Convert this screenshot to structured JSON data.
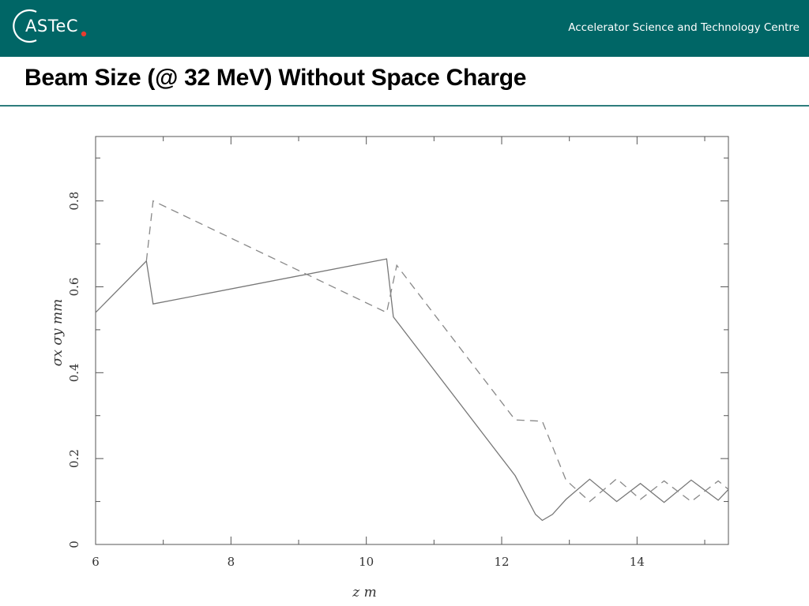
{
  "header": {
    "logo_text": "ASTeC",
    "org_name": "Accelerator Science and Technology Centre",
    "logo_dot_color": "#e63c2f",
    "background": "#006666"
  },
  "title": "Beam Size (@ 32 MeV) Without Space Charge",
  "chart_data": {
    "type": "line",
    "xlabel": "z  m",
    "ylabel": "σx  σy  mm",
    "xlim": [
      6,
      15.35
    ],
    "ylim": [
      0,
      0.95
    ],
    "xticks": [
      6,
      8,
      10,
      12,
      14
    ],
    "yticks": [
      0,
      0.2,
      0.4,
      0.6,
      0.8
    ],
    "grid": false,
    "series": [
      {
        "style": "solid",
        "x": [
          6.0,
          6.75,
          6.85,
          10.3,
          10.4,
          12.2,
          12.5,
          12.6,
          12.75,
          12.95,
          13.3,
          13.7,
          14.05,
          14.4,
          14.8,
          15.2,
          15.35
        ],
        "y": [
          0.54,
          0.66,
          0.56,
          0.665,
          0.53,
          0.16,
          0.07,
          0.056,
          0.07,
          0.105,
          0.152,
          0.1,
          0.142,
          0.098,
          0.15,
          0.103,
          0.128
        ]
      },
      {
        "style": "dashed",
        "x": [
          6.75,
          6.85,
          10.3,
          10.45,
          12.2,
          12.6,
          12.95,
          13.3,
          13.7,
          14.05,
          14.4,
          14.8,
          15.2,
          15.35
        ],
        "y": [
          0.66,
          0.8,
          0.54,
          0.65,
          0.29,
          0.287,
          0.15,
          0.1,
          0.153,
          0.105,
          0.148,
          0.1,
          0.148,
          0.128
        ]
      }
    ]
  }
}
